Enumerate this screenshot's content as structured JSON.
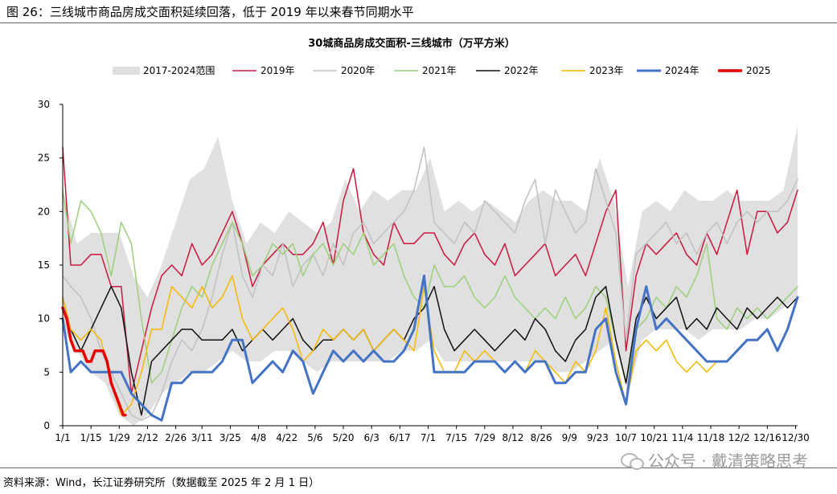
{
  "figure": {
    "title": "图 26：三线城市商品房成交面积延续回落，低于 2019 年以来春节同期水平",
    "source": "资料来源：Wind，长江证券研究所（数据截至 2025 年 2 月 1 日）",
    "watermark": "公众号 · 戴清策略思考",
    "watermark_icon": "wechat-icon"
  },
  "chart_data": {
    "type": "line",
    "title": "30城商品房成交面积-三线城市（万平方米）",
    "xlabel": "",
    "ylabel": "",
    "ylim": [
      0,
      30
    ],
    "yticks": [
      0,
      5,
      10,
      15,
      20,
      25,
      30
    ],
    "x_unit": "day-of-year",
    "xlim": [
      1,
      365
    ],
    "xticks": [
      {
        "label": "1/1",
        "x": 1
      },
      {
        "label": "1/15",
        "x": 15
      },
      {
        "label": "1/29",
        "x": 29
      },
      {
        "label": "2/12",
        "x": 43
      },
      {
        "label": "2/26",
        "x": 57
      },
      {
        "label": "3/11",
        "x": 70
      },
      {
        "label": "3/25",
        "x": 84
      },
      {
        "label": "4/8",
        "x": 98
      },
      {
        "label": "4/22",
        "x": 112
      },
      {
        "label": "5/6",
        "x": 126
      },
      {
        "label": "5/20",
        "x": 140
      },
      {
        "label": "6/3",
        "x": 154
      },
      {
        "label": "6/17",
        "x": 168
      },
      {
        "label": "7/1",
        "x": 182
      },
      {
        "label": "7/15",
        "x": 196
      },
      {
        "label": "7/29",
        "x": 210
      },
      {
        "label": "8/12",
        "x": 224
      },
      {
        "label": "8/26",
        "x": 238
      },
      {
        "label": "9/9",
        "x": 252
      },
      {
        "label": "9/23",
        "x": 266
      },
      {
        "label": "10/7",
        "x": 280
      },
      {
        "label": "10/21",
        "x": 294
      },
      {
        "label": "11/4",
        "x": 308
      },
      {
        "label": "11/18",
        "x": 322
      },
      {
        "label": "12/2",
        "x": 336
      },
      {
        "label": "12/16",
        "x": 350
      },
      {
        "label": "12/30",
        "x": 364
      }
    ],
    "grid": false,
    "legend_position": "top",
    "range_band": {
      "name": "2017-2024范围",
      "color": "#e0e0e0",
      "x": [
        1,
        8,
        15,
        22,
        29,
        36,
        43,
        50,
        57,
        64,
        71,
        78,
        85,
        92,
        99,
        106,
        113,
        120,
        127,
        134,
        141,
        148,
        155,
        162,
        169,
        176,
        183,
        190,
        197,
        204,
        211,
        218,
        225,
        232,
        239,
        246,
        253,
        260,
        267,
        274,
        281,
        288,
        295,
        302,
        309,
        316,
        323,
        330,
        337,
        344,
        351,
        358,
        365
      ],
      "upper": [
        22,
        17,
        18,
        18,
        18,
        14,
        12,
        15,
        19,
        23,
        24,
        27,
        21,
        17,
        19,
        18,
        20,
        19,
        18,
        19,
        23,
        20,
        22,
        21,
        22,
        22,
        25,
        20,
        21,
        20,
        21,
        20,
        19,
        21,
        22,
        21,
        21,
        20,
        25,
        21,
        13,
        20,
        21,
        20,
        22,
        21,
        21,
        22,
        21,
        21,
        21,
        22,
        28
      ],
      "lower": [
        9,
        7,
        5,
        4,
        1,
        0,
        1,
        3,
        4,
        5,
        5,
        6,
        7,
        6,
        6,
        7,
        7,
        6,
        5,
        6,
        6,
        6,
        6,
        6,
        7,
        7,
        8,
        6,
        6,
        6,
        6,
        6,
        6,
        6,
        6,
        5,
        5,
        6,
        7,
        8,
        3,
        8,
        9,
        9,
        9,
        8,
        9,
        9,
        9,
        10,
        10,
        11,
        12
      ]
    },
    "series": [
      {
        "name": "2019年",
        "color": "#c8183e",
        "width": 1.5,
        "x": [
          1,
          5,
          10,
          15,
          20,
          25,
          30,
          35,
          40,
          45,
          50,
          55,
          60,
          65,
          70,
          75,
          80,
          85,
          90,
          95,
          100,
          105,
          110,
          115,
          120,
          125,
          130,
          135,
          140,
          145,
          150,
          155,
          160,
          165,
          170,
          175,
          180,
          185,
          190,
          195,
          200,
          205,
          210,
          215,
          220,
          225,
          230,
          235,
          240,
          245,
          250,
          255,
          260,
          265,
          270,
          275,
          280,
          285,
          290,
          295,
          300,
          305,
          310,
          315,
          320,
          325,
          330,
          335,
          340,
          345,
          350,
          355,
          360,
          365
        ],
        "y": [
          26,
          15,
          15,
          16,
          16,
          13,
          13,
          3,
          7,
          11,
          14,
          15,
          14,
          17,
          15,
          16,
          18,
          20,
          17,
          13,
          15,
          16,
          17,
          16,
          16,
          17,
          19,
          15,
          21,
          24,
          18,
          16,
          15,
          19,
          17,
          17,
          18,
          18,
          16,
          15,
          17,
          18,
          16,
          15,
          17,
          14,
          15,
          16,
          17,
          14,
          15,
          16,
          14,
          17,
          20,
          22,
          7,
          14,
          17,
          16,
          17,
          18,
          16,
          15,
          18,
          16,
          19,
          22,
          16,
          20,
          20,
          18,
          19,
          22
        ]
      },
      {
        "name": "2020年",
        "color": "#c0c0c0",
        "width": 1.5,
        "x": [
          1,
          5,
          10,
          15,
          20,
          25,
          30,
          35,
          40,
          45,
          50,
          55,
          60,
          65,
          70,
          75,
          80,
          85,
          90,
          95,
          100,
          105,
          110,
          115,
          120,
          125,
          130,
          135,
          140,
          145,
          150,
          155,
          160,
          165,
          170,
          175,
          180,
          185,
          190,
          195,
          200,
          205,
          210,
          215,
          220,
          225,
          230,
          235,
          240,
          245,
          250,
          255,
          260,
          265,
          270,
          275,
          280,
          285,
          290,
          295,
          300,
          305,
          310,
          315,
          320,
          325,
          330,
          335,
          340,
          345,
          350,
          355,
          360,
          365
        ],
        "y": [
          14,
          13,
          12,
          10,
          7,
          5,
          3,
          1,
          0.5,
          1,
          3,
          6,
          8,
          7,
          9,
          12,
          16,
          19,
          14,
          12,
          15,
          14,
          17,
          13,
          15,
          16,
          14,
          17,
          15,
          18,
          19,
          17,
          18,
          19,
          20,
          22,
          26,
          19,
          18,
          17,
          19,
          18,
          21,
          20,
          19,
          18,
          21,
          23,
          17,
          22,
          20,
          18,
          19,
          24,
          21,
          18,
          8,
          16,
          17,
          18,
          19,
          17,
          18,
          16,
          18,
          19,
          17,
          19,
          20,
          19,
          20,
          20,
          21,
          23
        ]
      },
      {
        "name": "2021年",
        "color": "#9ccf7a",
        "width": 1.5,
        "x": [
          1,
          5,
          10,
          15,
          20,
          25,
          30,
          35,
          40,
          45,
          50,
          55,
          60,
          65,
          70,
          75,
          80,
          85,
          90,
          95,
          100,
          105,
          110,
          115,
          120,
          125,
          130,
          135,
          140,
          145,
          150,
          155,
          160,
          165,
          170,
          175,
          180,
          185,
          190,
          195,
          200,
          205,
          210,
          215,
          220,
          225,
          230,
          235,
          240,
          245,
          250,
          255,
          260,
          265,
          270,
          275,
          280,
          285,
          290,
          295,
          300,
          305,
          310,
          315,
          320,
          325,
          330,
          335,
          340,
          345,
          350,
          355,
          360,
          365
        ],
        "y": [
          22,
          17,
          21,
          20,
          18,
          14,
          19,
          17,
          10,
          4,
          5,
          8,
          11,
          13,
          12,
          15,
          17,
          19,
          17,
          14,
          15,
          17,
          16,
          17,
          14,
          16,
          17,
          15,
          17,
          16,
          18,
          15,
          16,
          17,
          14,
          12,
          11,
          15,
          13,
          13,
          14,
          12,
          11,
          12,
          14,
          12,
          11,
          10,
          11,
          10,
          12,
          10,
          11,
          13,
          12,
          8,
          4,
          9,
          10,
          12,
          11,
          13,
          12,
          14,
          17,
          10,
          9,
          11,
          10,
          11,
          10,
          11,
          12,
          13
        ]
      },
      {
        "name": "2022年",
        "color": "#111111",
        "width": 1.5,
        "x": [
          1,
          5,
          10,
          15,
          20,
          25,
          30,
          35,
          40,
          45,
          50,
          55,
          60,
          65,
          70,
          75,
          80,
          85,
          90,
          95,
          100,
          105,
          110,
          115,
          120,
          125,
          130,
          135,
          140,
          145,
          150,
          155,
          160,
          165,
          170,
          175,
          180,
          185,
          190,
          195,
          200,
          205,
          210,
          215,
          220,
          225,
          230,
          235,
          240,
          245,
          250,
          255,
          260,
          265,
          270,
          275,
          280,
          285,
          290,
          295,
          300,
          305,
          310,
          315,
          320,
          325,
          330,
          335,
          340,
          345,
          350,
          355,
          360,
          365
        ],
        "y": [
          12,
          9,
          7,
          9,
          11,
          13,
          11,
          5,
          1,
          6,
          7,
          8,
          9,
          9,
          8,
          8,
          8,
          9,
          7,
          8,
          9,
          8,
          9,
          10,
          8,
          7,
          8,
          8,
          9,
          8,
          9,
          7,
          8,
          9,
          8,
          10,
          11,
          13,
          9,
          7,
          8,
          9,
          8,
          7,
          8,
          9,
          8,
          10,
          9,
          7,
          6,
          8,
          9,
          12,
          13,
          8,
          4,
          10,
          12,
          10,
          11,
          12,
          9,
          10,
          9,
          11,
          10,
          9,
          11,
          10,
          11,
          12,
          11,
          12
        ]
      },
      {
        "name": "2023年",
        "color": "#f5b800",
        "width": 1.5,
        "x": [
          1,
          5,
          10,
          15,
          20,
          25,
          30,
          35,
          40,
          45,
          50,
          55,
          60,
          65,
          70,
          75,
          80,
          85,
          90,
          95,
          100,
          105,
          110,
          115,
          120,
          125,
          130,
          135,
          140,
          145,
          150,
          155,
          160,
          165,
          170,
          175,
          180,
          185,
          190,
          195,
          200,
          205,
          210,
          215,
          220,
          225,
          230,
          235,
          240,
          245,
          250,
          255,
          260,
          265,
          270,
          275,
          280,
          285,
          290,
          295,
          300,
          305,
          310,
          315,
          320,
          325,
          330,
          335,
          340,
          345,
          350,
          355,
          360,
          365
        ],
        "y": [
          12,
          9,
          8,
          9,
          8,
          4,
          1,
          2,
          5,
          9,
          9,
          13,
          12,
          11,
          13,
          11,
          12,
          14,
          10,
          8,
          9,
          10,
          11,
          9,
          6,
          7,
          9,
          8,
          9,
          8,
          9,
          7,
          8,
          9,
          8,
          7,
          13,
          7,
          5,
          5,
          7,
          6,
          7,
          6,
          5,
          6,
          5,
          7,
          6,
          5,
          4,
          6,
          5,
          7,
          11,
          6,
          2,
          7,
          8,
          7,
          8,
          6,
          5,
          6,
          5,
          6,
          null,
          null,
          null,
          null,
          null,
          null,
          null,
          null
        ]
      },
      {
        "name": "2024年",
        "color": "#4472c4",
        "width": 3,
        "x": [
          1,
          5,
          10,
          15,
          20,
          25,
          30,
          35,
          40,
          45,
          50,
          55,
          60,
          65,
          70,
          75,
          80,
          85,
          90,
          95,
          100,
          105,
          110,
          115,
          120,
          125,
          130,
          135,
          140,
          145,
          150,
          155,
          160,
          165,
          170,
          175,
          180,
          185,
          190,
          195,
          200,
          205,
          210,
          215,
          220,
          225,
          230,
          235,
          240,
          245,
          250,
          255,
          260,
          265,
          270,
          275,
          280,
          285,
          290,
          295,
          300,
          305,
          310,
          315,
          320,
          325,
          330,
          335,
          340,
          345,
          350,
          355,
          360,
          365
        ],
        "y": [
          10,
          5,
          6,
          5,
          5,
          5,
          5,
          3,
          2,
          1,
          0.5,
          4,
          4,
          5,
          5,
          5,
          6,
          8,
          8,
          4,
          5,
          6,
          5,
          7,
          6,
          3,
          5,
          7,
          6,
          7,
          6,
          7,
          6,
          6,
          7,
          9,
          14,
          5,
          5,
          5,
          5,
          6,
          6,
          6,
          5,
          6,
          5,
          6,
          6,
          4,
          4,
          5,
          5,
          9,
          10,
          5,
          2,
          9,
          13,
          9,
          10,
          9,
          8,
          7,
          6,
          6,
          6,
          7,
          8,
          8,
          9,
          7,
          9,
          12
        ]
      },
      {
        "name": "2025",
        "color": "#e60000",
        "width": 3.5,
        "x": [
          1,
          3,
          5,
          7,
          9,
          11,
          13,
          15,
          17,
          19,
          21,
          23,
          25,
          27,
          29,
          31,
          32
        ],
        "y": [
          11,
          10,
          8,
          7,
          7,
          7,
          6,
          6,
          7,
          7,
          7,
          6,
          4,
          3,
          2,
          1,
          1
        ]
      }
    ]
  }
}
